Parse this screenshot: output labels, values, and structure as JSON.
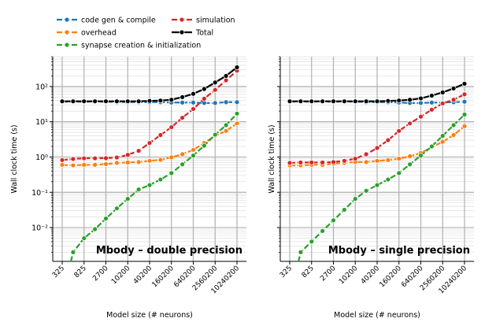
{
  "colors": {
    "code_gen": "#1f77b4",
    "overhead": "#ff7f0e",
    "synapse": "#2ca02c",
    "simulation": "#d62728",
    "total": "#000000",
    "grid": "#b0b0b0"
  },
  "legend": {
    "placement": "top-left, above panels, two columns",
    "entries": [
      {
        "key": "code_gen",
        "label": "code gen & compile"
      },
      {
        "key": "overhead",
        "label": "overhead"
      },
      {
        "key": "synapse",
        "label": "synapse creation & initialization"
      },
      {
        "key": "simulation",
        "label": "simulation"
      },
      {
        "key": "total",
        "label": "Total"
      }
    ]
  },
  "chart_data": [
    {
      "type": "line",
      "title": "Mbody – double precision",
      "xlabel": "Model size (# neurons)",
      "ylabel": "Wall clock time (s)",
      "yscale": "log",
      "xscale": "categorical",
      "ylim": [
        0.0011,
        700
      ],
      "grid": true,
      "x_ticks": [
        "325",
        "825",
        "2700",
        "10200",
        "40200",
        "160200",
        "640200",
        "2560200",
        "10240200"
      ],
      "y_ticks": [
        {
          "value": 0.01,
          "label": "10⁻²"
        },
        {
          "value": 0.1,
          "label": "10⁻¹"
        },
        {
          "value": 1,
          "label": "10⁰"
        },
        {
          "value": 10,
          "label": "10¹"
        },
        {
          "value": 100,
          "label": "10²"
        }
      ],
      "x": [
        0,
        0.5,
        1,
        1.5,
        2,
        2.5,
        3,
        3.5,
        4,
        4.5,
        5,
        5.5,
        6,
        6.5,
        7,
        7.5,
        8
      ],
      "series": [
        {
          "key": "code_gen",
          "name": "code gen & compile",
          "values": [
            37,
            37,
            37,
            37,
            37,
            36,
            36,
            36,
            36,
            36,
            35,
            35,
            35,
            34,
            34,
            36,
            36
          ]
        },
        {
          "key": "overhead",
          "name": "overhead",
          "values": [
            0.6,
            0.58,
            0.6,
            0.6,
            0.63,
            0.68,
            0.7,
            0.72,
            0.78,
            0.83,
            0.98,
            1.2,
            1.6,
            2.5,
            4.0,
            5.5,
            9.0
          ]
        },
        {
          "key": "synapse",
          "name": "synapse creation & initialization",
          "values": [
            0.0001,
            0.002,
            0.005,
            0.009,
            0.018,
            0.035,
            0.065,
            0.12,
            0.16,
            0.23,
            0.35,
            0.62,
            1.1,
            2.1,
            4.3,
            8.0,
            17.0
          ]
        },
        {
          "key": "simulation",
          "name": "simulation",
          "values": [
            0.82,
            0.88,
            0.92,
            0.92,
            0.93,
            0.97,
            1.15,
            1.5,
            2.5,
            4.2,
            7.0,
            13.0,
            23.0,
            45.0,
            80.0,
            150.0,
            280.0
          ]
        },
        {
          "key": "total",
          "name": "Total",
          "values": [
            38,
            38,
            38,
            38,
            38,
            38,
            38,
            38,
            39,
            40,
            42,
            50,
            62,
            85,
            130,
            200,
            350
          ]
        }
      ]
    },
    {
      "type": "line",
      "title": "Mbody – single precision",
      "xlabel": "Model size (# neurons)",
      "ylabel": "Wall clock time (s)",
      "yscale": "log",
      "xscale": "categorical",
      "ylim": [
        0.0011,
        700
      ],
      "grid": true,
      "x_ticks": [
        "325",
        "825",
        "2700",
        "10200",
        "40200",
        "160200",
        "640200",
        "2560200",
        "10240200"
      ],
      "y_ticks": [
        {
          "value": 0.01,
          "label": "10⁻²"
        },
        {
          "value": 0.1,
          "label": "10⁻¹"
        },
        {
          "value": 1,
          "label": "10⁰"
        },
        {
          "value": 10,
          "label": "10¹"
        },
        {
          "value": 100,
          "label": "10²"
        }
      ],
      "x": [
        0,
        0.5,
        1,
        1.5,
        2,
        2.5,
        3,
        3.5,
        4,
        4.5,
        5,
        5.5,
        6,
        6.5,
        7,
        7.5,
        8
      ],
      "series": [
        {
          "key": "code_gen",
          "name": "code gen & compile",
          "values": [
            37,
            37,
            37,
            37,
            37,
            37,
            37,
            36,
            36,
            36,
            35,
            34,
            34,
            35,
            35,
            36,
            37
          ]
        },
        {
          "key": "overhead",
          "name": "overhead",
          "values": [
            0.58,
            0.58,
            0.6,
            0.6,
            0.65,
            0.68,
            0.72,
            0.72,
            0.78,
            0.82,
            0.9,
            1.05,
            1.3,
            1.9,
            2.7,
            4.2,
            7.5
          ]
        },
        {
          "key": "synapse",
          "name": "synapse creation & initialization",
          "values": [
            0.0001,
            0.002,
            0.004,
            0.008,
            0.016,
            0.032,
            0.065,
            0.11,
            0.16,
            0.23,
            0.35,
            0.62,
            1.1,
            2.0,
            4.0,
            8.0,
            16.0
          ]
        },
        {
          "key": "simulation",
          "name": "simulation",
          "values": [
            0.68,
            0.7,
            0.7,
            0.7,
            0.72,
            0.78,
            0.9,
            1.2,
            1.8,
            3.0,
            5.5,
            9.0,
            14.0,
            22.0,
            33.0,
            42.0,
            60.0
          ]
        },
        {
          "key": "total",
          "name": "Total",
          "values": [
            38,
            38,
            38,
            38,
            38,
            38,
            38,
            38,
            38,
            39,
            40,
            42,
            46,
            55,
            68,
            88,
            120
          ]
        }
      ]
    }
  ]
}
